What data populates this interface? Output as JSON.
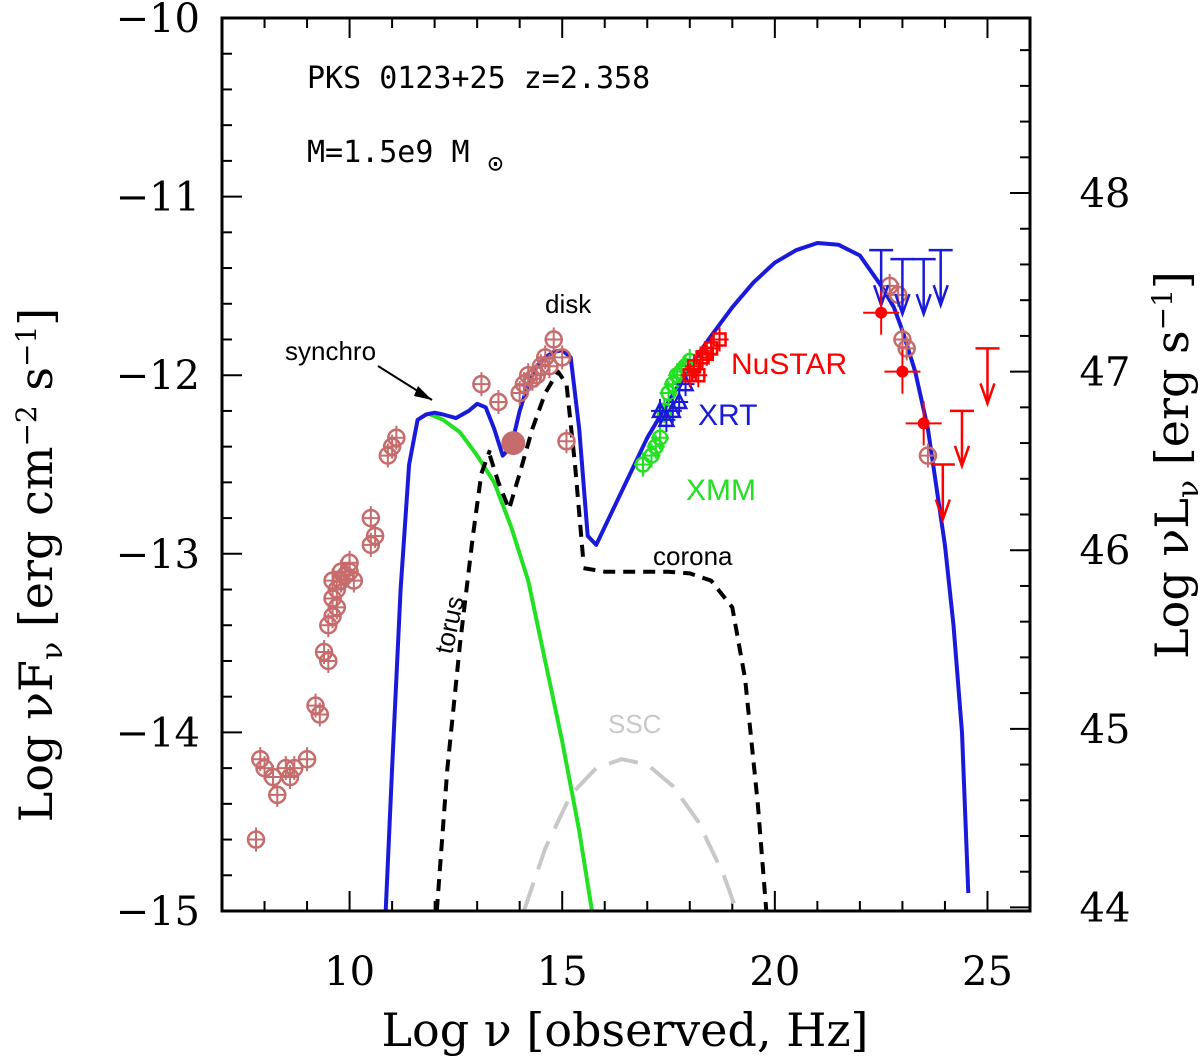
{
  "chart_data": {
    "type": "scatter",
    "title": "PKS 0123+25 z=2.358",
    "mass_label": "M=1.5e9 M",
    "mass_sun_symbol": "⊙",
    "xlabel": "Log ν  [observed, Hz]",
    "ylabel": "Log νF",
    "ylabel_sub": "ν",
    "ylabel_units": " [erg cm",
    "ylabel_units_sup1": "−2",
    "ylabel_units_mid": " s",
    "ylabel_units_sup2": "−1",
    "ylabel_units_end": "]",
    "y2label": "Log νL",
    "y2label_sub": "ν",
    "y2label_units": " [erg s",
    "y2label_units_sup": "−1",
    "y2label_units_end": "]",
    "xlim": [
      7,
      26
    ],
    "ylim": [
      -15,
      -10
    ],
    "x_ticks": [
      10,
      15,
      20,
      25
    ],
    "x_tick_labels": [
      "10",
      "15",
      "20",
      "25"
    ],
    "y_ticks": [
      -15,
      -14,
      -13,
      -12,
      -11,
      -10
    ],
    "y_tick_labels": [
      "−15",
      "−14",
      "−13",
      "−12",
      "−11",
      "−10"
    ],
    "y2_ticks": [
      44,
      45,
      46,
      47,
      48
    ],
    "y2_tick_labels": [
      "44",
      "45",
      "46",
      "47",
      "48"
    ],
    "y2_offset": 58.98,
    "colors": {
      "total": "#1a1adb",
      "synchro": "#22e022",
      "ssc": "#c8c8c8",
      "components": "#000000",
      "archival": "#c76c6c",
      "xmm": "#22e022",
      "xrt": "#1a1adb",
      "nustar": "#ff0000",
      "fermi_upper": "#1a1adb",
      "fermi_red": "#ff0000"
    },
    "labels": {
      "synchro": "synchro",
      "disk": "disk",
      "torus": "torus",
      "corona": "corona",
      "ssc": "SSC",
      "nustar": "NuSTAR",
      "xrt": "XRT",
      "xmm": "XMM"
    },
    "series": [
      {
        "name": "total",
        "x": [
          10.85,
          11.0,
          11.2,
          11.4,
          11.6,
          11.8,
          12.0,
          12.2,
          12.5,
          12.8,
          13.0,
          13.2,
          13.4,
          13.6,
          13.8,
          14.0,
          14.2,
          14.4,
          14.6,
          14.8,
          15.0,
          15.2,
          15.4,
          15.6,
          15.8,
          16.0,
          16.5,
          17.0,
          17.5,
          18.0,
          18.5,
          19.0,
          19.5,
          20.0,
          20.5,
          21.0,
          21.5,
          22.0,
          22.5,
          22.8,
          23.0,
          23.3,
          23.6,
          24.0,
          24.2,
          24.4,
          24.55
        ],
        "y": [
          -15.0,
          -14.2,
          -13.2,
          -12.5,
          -12.25,
          -12.22,
          -12.21,
          -12.22,
          -12.24,
          -12.2,
          -12.16,
          -12.18,
          -12.3,
          -12.45,
          -12.4,
          -12.2,
          -12.05,
          -11.95,
          -11.9,
          -11.87,
          -11.86,
          -11.9,
          -12.3,
          -12.9,
          -12.95,
          -12.85,
          -12.6,
          -12.35,
          -12.15,
          -11.95,
          -11.78,
          -11.62,
          -11.48,
          -11.37,
          -11.3,
          -11.26,
          -11.27,
          -11.33,
          -11.5,
          -11.62,
          -11.75,
          -11.98,
          -12.3,
          -12.95,
          -13.4,
          -14.0,
          -14.9
        ]
      },
      {
        "name": "synchro",
        "x": [
          11.9,
          12.2,
          12.6,
          13.0,
          13.4,
          13.8,
          14.2,
          14.6,
          15.0,
          15.4,
          15.7
        ],
        "y": [
          -12.22,
          -12.25,
          -12.32,
          -12.45,
          -12.6,
          -12.85,
          -13.15,
          -13.6,
          -14.05,
          -14.55,
          -15.0
        ]
      },
      {
        "name": "ssc",
        "x": [
          14.1,
          14.6,
          15.2,
          15.8,
          16.4,
          17.0,
          17.6,
          18.2,
          18.8,
          19.1
        ],
        "y": [
          -15.0,
          -14.65,
          -14.35,
          -14.2,
          -14.15,
          -14.18,
          -14.3,
          -14.5,
          -14.8,
          -15.0
        ]
      },
      {
        "name": "torus",
        "x": [
          12.05,
          12.3,
          12.6,
          12.9,
          13.1,
          13.3
        ],
        "y": [
          -15.0,
          -14.2,
          -13.5,
          -12.9,
          -12.55,
          -12.42
        ]
      },
      {
        "name": "disk",
        "x": [
          13.3,
          13.5,
          13.75,
          14.0,
          14.3,
          14.6,
          14.9,
          15.1,
          15.3,
          15.5
        ],
        "y": [
          -12.45,
          -12.6,
          -12.75,
          -12.55,
          -12.3,
          -12.1,
          -11.98,
          -12.05,
          -12.5,
          -13.05
        ]
      },
      {
        "name": "corona",
        "x": [
          15.5,
          16.0,
          16.5,
          17.0,
          17.5,
          18.0,
          18.5,
          19.0,
          19.3,
          19.6,
          19.8
        ],
        "y": [
          -13.08,
          -13.1,
          -13.1,
          -13.1,
          -13.1,
          -13.11,
          -13.15,
          -13.3,
          -13.7,
          -14.4,
          -15.0
        ]
      }
    ],
    "archival_points": {
      "x": [
        7.8,
        7.9,
        8.0,
        8.2,
        8.3,
        8.5,
        8.6,
        8.7,
        9.0,
        9.2,
        9.3,
        9.4,
        9.5,
        9.5,
        9.6,
        9.6,
        9.6,
        9.7,
        9.7,
        9.8,
        9.8,
        9.9,
        10.0,
        10.0,
        10.1,
        10.5,
        10.5,
        10.6,
        10.9,
        11.0,
        11.1,
        13.1,
        13.5,
        14.0,
        14.1,
        14.2,
        14.3,
        14.4,
        14.5,
        14.6,
        14.7,
        14.8,
        15.0,
        15.1,
        22.7,
        22.9,
        23.0,
        23.1,
        23.6
      ],
      "y": [
        -14.6,
        -14.15,
        -14.2,
        -14.25,
        -14.35,
        -14.2,
        -14.25,
        -14.2,
        -14.15,
        -13.85,
        -13.9,
        -13.55,
        -13.6,
        -13.4,
        -13.35,
        -13.25,
        -13.15,
        -13.2,
        -13.3,
        -13.15,
        -13.1,
        -13.12,
        -13.05,
        -13.1,
        -13.15,
        -12.95,
        -12.8,
        -12.9,
        -12.45,
        -12.4,
        -12.35,
        -12.05,
        -12.15,
        -12.1,
        -12.05,
        -12.0,
        -12.02,
        -12.0,
        -11.95,
        -11.9,
        -11.95,
        -11.8,
        -11.9,
        -12.37,
        -11.5,
        -11.55,
        -11.8,
        -11.85,
        -12.45
      ]
    },
    "archival_filled": {
      "x": [
        13.85
      ],
      "y": [
        -12.38
      ]
    },
    "xmm_points": {
      "x": [
        16.9,
        17.1,
        17.2,
        17.3,
        17.4,
        17.5,
        17.6,
        17.7,
        17.8,
        17.9,
        18.0
      ],
      "y": [
        -12.5,
        -12.45,
        -12.4,
        -12.35,
        -12.2,
        -12.1,
        -12.05,
        -12.0,
        -11.98,
        -11.95,
        -11.92
      ]
    },
    "xrt_points": {
      "x": [
        17.3,
        17.45,
        17.6,
        17.75,
        17.9
      ],
      "y": [
        -12.2,
        -12.25,
        -12.2,
        -12.15,
        -12.05
      ]
    },
    "nustar_points": {
      "x": [
        18.0,
        18.1,
        18.2,
        18.3,
        18.4,
        18.5,
        18.7
      ],
      "y": [
        -12.0,
        -11.95,
        -12.0,
        -11.9,
        -11.88,
        -11.85,
        -11.8
      ]
    },
    "fermi_blue_upper": {
      "x": [
        22.5,
        23.0,
        23.5,
        23.9
      ],
      "y": [
        -11.3,
        -11.35,
        -11.35,
        -11.3
      ]
    },
    "fermi_red_points": {
      "x": [
        22.5,
        23.0,
        23.5
      ],
      "y": [
        -11.65,
        -11.98,
        -12.27
      ]
    },
    "fermi_red_upper": {
      "x": [
        23.95,
        24.4,
        25.0
      ],
      "y": [
        -12.5,
        -12.2,
        -11.85
      ]
    }
  }
}
